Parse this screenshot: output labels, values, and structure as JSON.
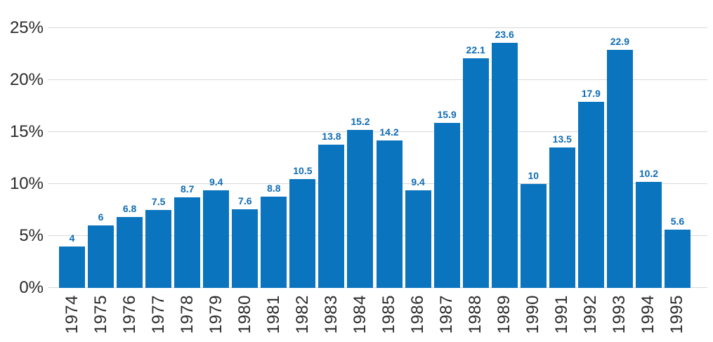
{
  "chart_data": {
    "type": "bar",
    "title": "",
    "xlabel": "",
    "ylabel": "",
    "categories": [
      "1974",
      "1975",
      "1976",
      "1977",
      "1978",
      "1979",
      "1980",
      "1981",
      "1982",
      "1983",
      "1984",
      "1985",
      "1986",
      "1987",
      "1988",
      "1989",
      "1990",
      "1991",
      "1992",
      "1993",
      "1994",
      "1995"
    ],
    "values": [
      4,
      6,
      6.8,
      7.5,
      8.7,
      9.4,
      7.6,
      8.8,
      10.5,
      13.8,
      15.2,
      14.2,
      9.4,
      15.9,
      22.1,
      23.6,
      10,
      13.5,
      17.9,
      22.9,
      10.2,
      5.6
    ],
    "value_labels": [
      "4",
      "6",
      "6.8",
      "7.5",
      "8.7",
      "9.4",
      "7.6",
      "8.8",
      "10.5",
      "13.8",
      "15.2",
      "14.2",
      "9.4",
      "15.9",
      "22.1",
      "23.6",
      "10",
      "13.5",
      "17.9",
      "22.9",
      "10.2",
      "5.6"
    ],
    "ylim": [
      0,
      25
    ],
    "yticks": [
      {
        "value": 0,
        "label": "0%"
      },
      {
        "value": 5,
        "label": "5%"
      },
      {
        "value": 10,
        "label": "10%"
      },
      {
        "value": 15,
        "label": "15%"
      },
      {
        "value": 20,
        "label": "20%"
      },
      {
        "value": 25,
        "label": "25%"
      }
    ],
    "grid": true,
    "legend": "none",
    "colors": {
      "bar": "#0b74be",
      "value_label": "#0f6cb4",
      "axis_text": "#2b2b2b",
      "gridline": "#d8d8d8",
      "background": "#ffffff"
    }
  }
}
